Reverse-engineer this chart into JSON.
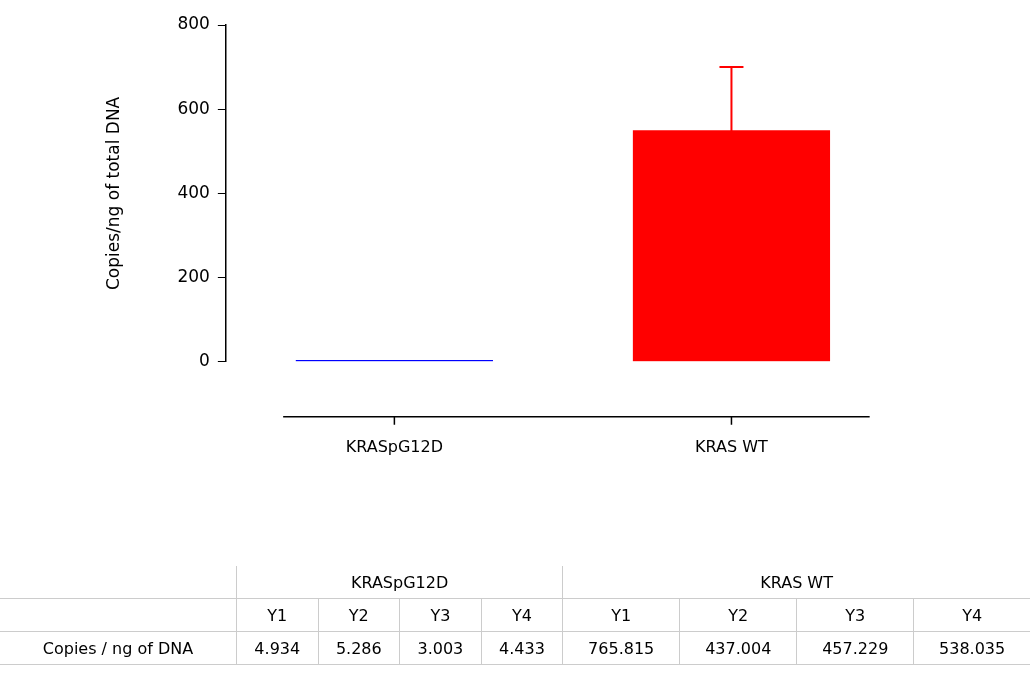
{
  "chart_data": {
    "type": "bar",
    "ylabel": "Copies/ng of total DNA",
    "categories": [
      "KRASpG12D",
      "KRAS WT"
    ],
    "series": [
      {
        "colors": [
          "#0000ff",
          "#ff0000"
        ],
        "values": [
          4,
          550
        ],
        "errors": [
          null,
          150
        ]
      }
    ],
    "ylim": [
      0,
      800
    ],
    "yticks": [
      0,
      200,
      400,
      600,
      800
    ],
    "grid": false,
    "legend": false,
    "annotations": [
      "Y1",
      "Y2",
      "Y3",
      "Y4",
      "Y1",
      "Y2",
      "Y3",
      "Y4",
      "Copies / ng of DNA",
      "4.934",
      "5.286",
      "3.003",
      "4.433",
      "765.815",
      "437.004",
      "457.229",
      "538.035"
    ]
  }
}
